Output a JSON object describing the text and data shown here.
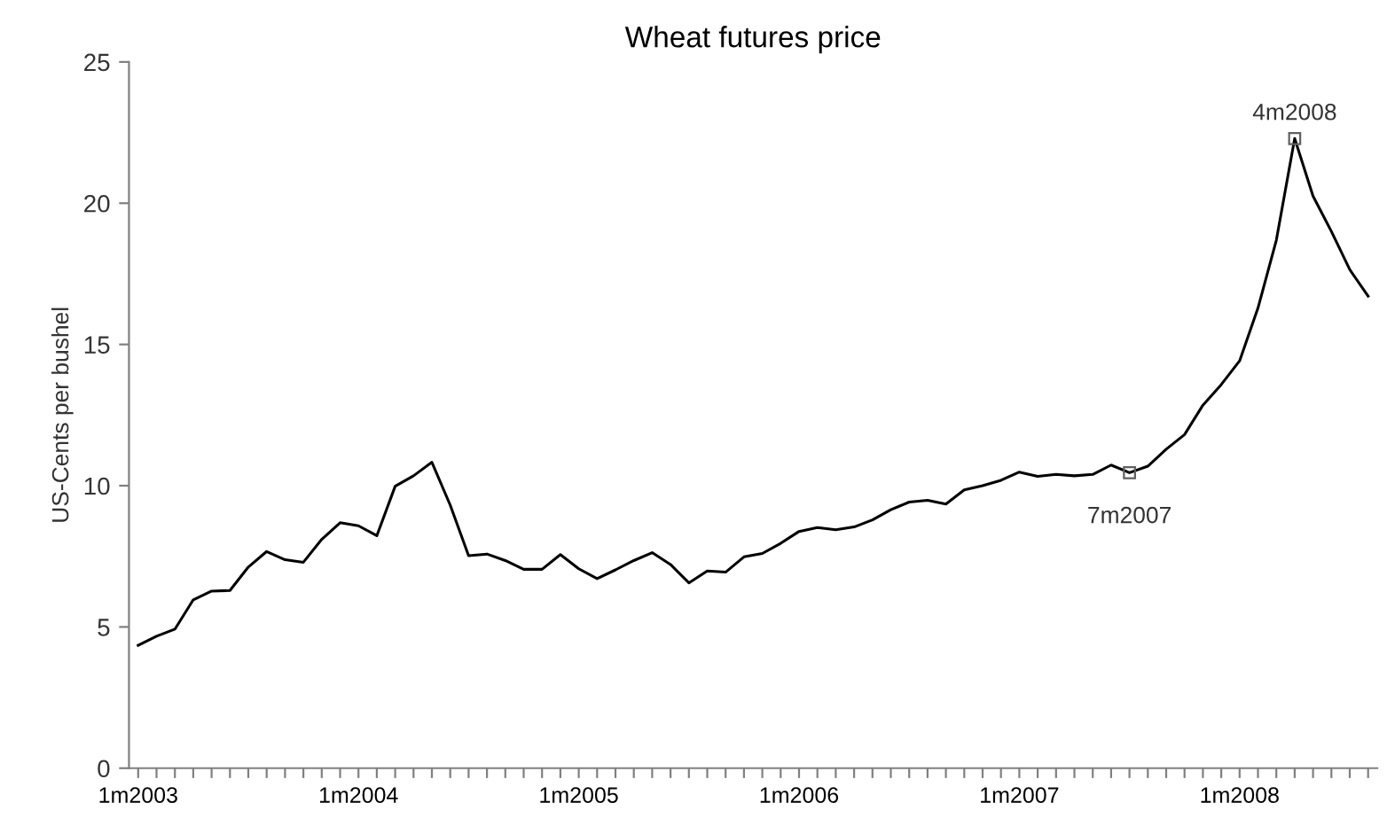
{
  "chart_data": {
    "type": "line",
    "title": "Wheat futures price",
    "ylabel": "US-Cents per bushel",
    "categories": [
      "1m2003",
      null,
      null,
      null,
      null,
      null,
      null,
      null,
      null,
      null,
      null,
      null,
      "1m2004",
      null,
      null,
      null,
      null,
      null,
      null,
      null,
      null,
      null,
      null,
      null,
      "1m2005",
      null,
      null,
      null,
      null,
      null,
      null,
      null,
      null,
      null,
      null,
      null,
      "1m2006",
      null,
      null,
      null,
      null,
      null,
      null,
      null,
      null,
      null,
      null,
      null,
      "1m2007",
      null,
      null,
      null,
      null,
      null,
      null,
      null,
      null,
      null,
      null,
      null,
      "1m2008",
      null,
      null,
      null,
      null,
      null,
      null,
      null
    ],
    "series": [
      {
        "color": "#000000",
        "values": [
          4.35,
          4.67,
          4.92,
          5.96,
          6.27,
          6.29,
          7.12,
          7.67,
          7.38,
          7.29,
          8.1,
          8.69,
          8.58,
          8.23,
          9.98,
          10.35,
          10.83,
          9.31,
          7.52,
          7.58,
          7.35,
          7.04,
          7.04,
          7.56,
          7.06,
          6.71,
          7.02,
          7.35,
          7.63,
          7.21,
          6.56,
          6.98,
          6.94,
          7.48,
          7.6,
          7.96,
          8.38,
          8.52,
          8.44,
          8.54,
          8.79,
          9.15,
          9.42,
          9.48,
          9.35,
          9.85,
          10.0,
          10.19,
          10.48,
          10.33,
          10.4,
          10.35,
          10.4,
          10.73,
          10.46,
          10.69,
          11.29,
          11.81,
          12.85,
          13.58,
          14.42,
          16.29,
          18.69,
          22.29,
          20.25,
          19.0,
          17.65,
          16.71
        ]
      }
    ],
    "annotations": [
      {
        "text": "7m2007",
        "y": 10.46
      },
      {
        "text": "4m2008",
        "y": 22.29
      }
    ],
    "ylim": [
      0,
      25
    ],
    "yticks": [
      0,
      5,
      10,
      15,
      20,
      25
    ],
    "grid": false,
    "legend": false
  }
}
